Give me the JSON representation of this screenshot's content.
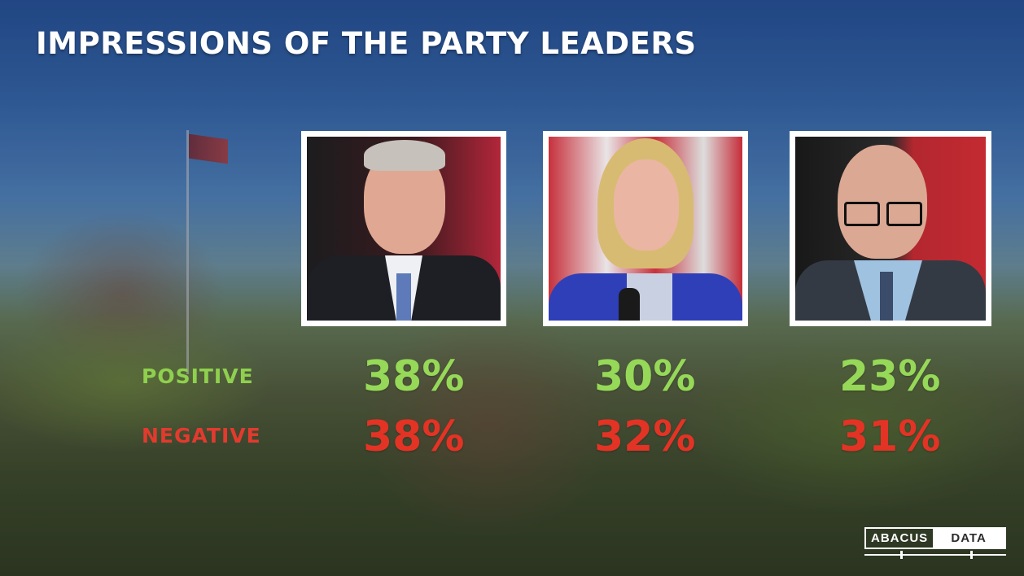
{
  "title": "IMPRESSIONS OF THE PARTY LEADERS",
  "row_labels": {
    "positive": "POSITIVE",
    "negative": "NEGATIVE"
  },
  "colors": {
    "positive": "#96d858",
    "negative": "#e33325",
    "title": "#ffffff"
  },
  "chart_data": {
    "type": "table",
    "title": "IMPRESSIONS OF THE PARTY LEADERS",
    "rows": [
      "POSITIVE",
      "NEGATIVE"
    ],
    "columns": 3,
    "values": {
      "positive": [
        "38%",
        "30%",
        "23%"
      ],
      "negative": [
        "38%",
        "32%",
        "31%"
      ]
    },
    "series": [
      {
        "name": "POSITIVE",
        "values": [
          38,
          30,
          23
        ]
      },
      {
        "name": "NEGATIVE",
        "values": [
          38,
          32,
          31
        ]
      }
    ]
  },
  "logo": {
    "part1": "ABACUS",
    "part2": "DATA"
  }
}
